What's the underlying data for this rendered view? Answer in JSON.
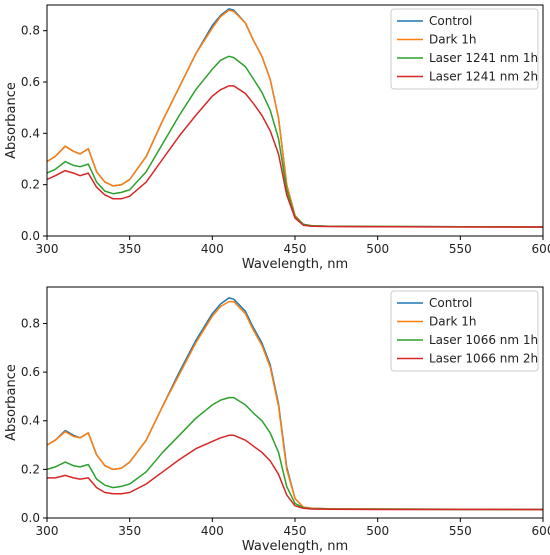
{
  "colors": {
    "control": "#1f77b4",
    "dark": "#ff7f0e",
    "laser1h": "#2ca02c",
    "laser2h": "#d62728"
  },
  "chart_data": [
    {
      "type": "line",
      "xlabel": "Wavelength, nm",
      "ylabel": "Absorbance",
      "xlim": [
        300,
        600
      ],
      "ylim": [
        0,
        0.9
      ],
      "xticks": [
        300,
        350,
        400,
        450,
        500,
        550,
        600
      ],
      "yticks": [
        0.0,
        0.2,
        0.4,
        0.6,
        0.8
      ],
      "grid": false,
      "legend": "top-right",
      "x": [
        300,
        305,
        311,
        316,
        320,
        325,
        330,
        335,
        340,
        345,
        350,
        360,
        370,
        380,
        390,
        400,
        405,
        410,
        413,
        420,
        425,
        430,
        435,
        440,
        445,
        450,
        455,
        460,
        470,
        500,
        550,
        600
      ],
      "series": [
        {
          "name": "Control",
          "color": "#1f77b4",
          "values": [
            0.29,
            0.31,
            0.35,
            0.33,
            0.32,
            0.34,
            0.25,
            0.21,
            0.195,
            0.2,
            0.22,
            0.31,
            0.45,
            0.58,
            0.71,
            0.82,
            0.86,
            0.885,
            0.88,
            0.83,
            0.76,
            0.7,
            0.61,
            0.46,
            0.2,
            0.08,
            0.045,
            0.04,
            0.038,
            0.037,
            0.036,
            0.035
          ]
        },
        {
          "name": "Dark 1h",
          "color": "#ff7f0e",
          "values": [
            0.29,
            0.31,
            0.35,
            0.33,
            0.32,
            0.34,
            0.25,
            0.21,
            0.195,
            0.2,
            0.22,
            0.31,
            0.45,
            0.58,
            0.71,
            0.81,
            0.855,
            0.88,
            0.875,
            0.83,
            0.76,
            0.7,
            0.61,
            0.46,
            0.2,
            0.08,
            0.045,
            0.04,
            0.038,
            0.037,
            0.036,
            0.035
          ]
        },
        {
          "name": "Laser 1241 nm 1h",
          "color": "#2ca02c",
          "values": [
            0.245,
            0.26,
            0.29,
            0.275,
            0.27,
            0.28,
            0.21,
            0.175,
            0.165,
            0.17,
            0.18,
            0.25,
            0.36,
            0.47,
            0.57,
            0.65,
            0.685,
            0.7,
            0.695,
            0.66,
            0.61,
            0.56,
            0.49,
            0.38,
            0.18,
            0.075,
            0.045,
            0.04,
            0.038,
            0.037,
            0.036,
            0.035
          ]
        },
        {
          "name": "Laser 1241 nm 2h",
          "color": "#d62728",
          "values": [
            0.22,
            0.235,
            0.255,
            0.245,
            0.235,
            0.245,
            0.19,
            0.16,
            0.145,
            0.145,
            0.155,
            0.21,
            0.3,
            0.39,
            0.47,
            0.545,
            0.57,
            0.585,
            0.585,
            0.555,
            0.515,
            0.47,
            0.41,
            0.32,
            0.16,
            0.07,
            0.042,
            0.038,
            0.037,
            0.036,
            0.035,
            0.035
          ]
        }
      ]
    },
    {
      "type": "line",
      "xlabel": "Wavelength, nm",
      "ylabel": "Absorbance",
      "xlim": [
        300,
        600
      ],
      "ylim": [
        0,
        0.95
      ],
      "xticks": [
        300,
        350,
        400,
        450,
        500,
        550,
        600
      ],
      "yticks": [
        0.0,
        0.2,
        0.4,
        0.6,
        0.8
      ],
      "grid": false,
      "legend": "top-right",
      "x": [
        300,
        305,
        311,
        316,
        320,
        325,
        330,
        335,
        340,
        345,
        350,
        360,
        370,
        380,
        390,
        400,
        405,
        410,
        413,
        420,
        425,
        430,
        435,
        440,
        445,
        450,
        455,
        460,
        470,
        500,
        550,
        600
      ],
      "series": [
        {
          "name": "Control",
          "color": "#1f77b4",
          "values": [
            0.3,
            0.32,
            0.36,
            0.34,
            0.33,
            0.35,
            0.26,
            0.215,
            0.2,
            0.205,
            0.23,
            0.32,
            0.46,
            0.6,
            0.73,
            0.84,
            0.88,
            0.905,
            0.9,
            0.85,
            0.78,
            0.72,
            0.63,
            0.47,
            0.21,
            0.08,
            0.045,
            0.04,
            0.038,
            0.037,
            0.036,
            0.035
          ]
        },
        {
          "name": "Dark 1h",
          "color": "#ff7f0e",
          "values": [
            0.3,
            0.32,
            0.355,
            0.335,
            0.33,
            0.35,
            0.26,
            0.215,
            0.2,
            0.205,
            0.23,
            0.32,
            0.46,
            0.59,
            0.72,
            0.83,
            0.87,
            0.89,
            0.89,
            0.84,
            0.77,
            0.71,
            0.62,
            0.46,
            0.2,
            0.08,
            0.045,
            0.04,
            0.038,
            0.037,
            0.036,
            0.035
          ]
        },
        {
          "name": "Laser 1066 nm 1h",
          "color": "#2ca02c",
          "values": [
            0.2,
            0.21,
            0.23,
            0.215,
            0.21,
            0.22,
            0.16,
            0.135,
            0.125,
            0.13,
            0.14,
            0.19,
            0.27,
            0.34,
            0.41,
            0.465,
            0.485,
            0.495,
            0.495,
            0.465,
            0.43,
            0.4,
            0.35,
            0.27,
            0.13,
            0.06,
            0.042,
            0.038,
            0.037,
            0.036,
            0.035,
            0.035
          ]
        },
        {
          "name": "Laser 1066 nm 2h",
          "color": "#d62728",
          "values": [
            0.165,
            0.165,
            0.175,
            0.165,
            0.16,
            0.165,
            0.125,
            0.105,
            0.1,
            0.1,
            0.105,
            0.14,
            0.19,
            0.24,
            0.285,
            0.315,
            0.33,
            0.34,
            0.34,
            0.32,
            0.295,
            0.27,
            0.235,
            0.18,
            0.095,
            0.05,
            0.04,
            0.037,
            0.036,
            0.035,
            0.035,
            0.035
          ]
        }
      ]
    }
  ]
}
